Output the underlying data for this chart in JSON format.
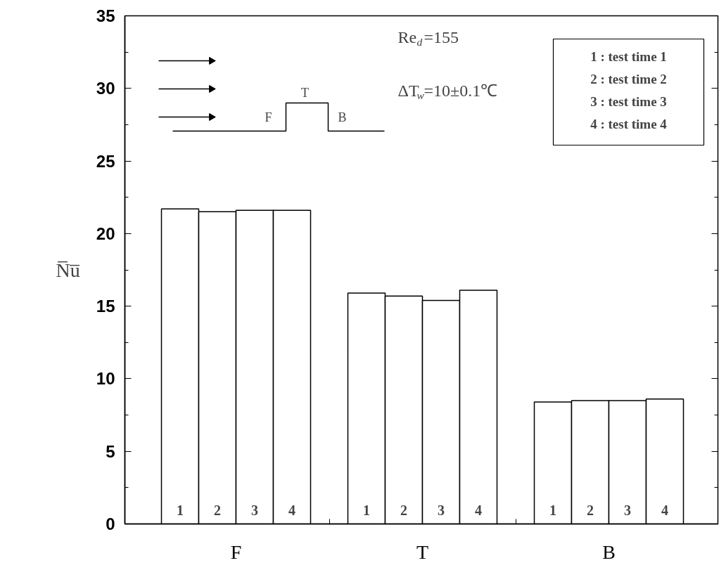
{
  "chart_data": {
    "type": "bar",
    "ylabel": "N̅u̅",
    "categories": [
      "F",
      "T",
      "B"
    ],
    "series": [
      {
        "name": "1",
        "color": "#ffffff",
        "values": [
          21.7,
          15.9,
          8.4
        ]
      },
      {
        "name": "2",
        "color": "#ffffff",
        "values": [
          21.5,
          15.7,
          8.5
        ]
      },
      {
        "name": "3",
        "color": "#ffffff",
        "values": [
          21.6,
          15.4,
          8.5
        ]
      },
      {
        "name": "4",
        "color": "#ffffff",
        "values": [
          21.6,
          16.1,
          8.6
        ]
      }
    ],
    "ylim": [
      0,
      35
    ],
    "yticks": [
      0,
      {
        "value": 2.5,
        "label": null
      },
      5,
      {
        "value": 7.5,
        "label": null
      },
      10,
      {
        "value": 12.5,
        "label": null
      },
      15,
      {
        "value": 17.5,
        "label": null
      },
      20,
      {
        "value": 22.5,
        "label": null
      },
      25,
      {
        "value": 27.5,
        "label": null
      },
      30,
      {
        "value": 32.5,
        "label": null
      },
      35
    ],
    "grid": false,
    "annotations": [
      "Re$_{d}$=155",
      "ΔT$_{w}$=10±0.1℃",
      "1 : test time 1",
      "2 : test time 2",
      "3 : test time 3",
      "4 : test time 4",
      "F",
      "T",
      "B"
    ]
  }
}
